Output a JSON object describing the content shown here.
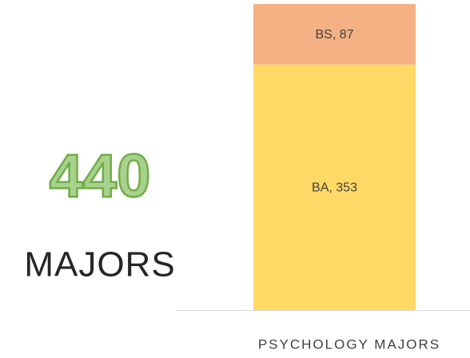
{
  "chart_data": {
    "type": "stacked-bar",
    "categories": [
      "PSYCHOLOGY MAJORS"
    ],
    "series": [
      {
        "name": "BA",
        "color": "#ffd966",
        "values": [
          353
        ],
        "value_labels": [
          "BA, 353"
        ]
      },
      {
        "name": "BS",
        "color": "#f4b183",
        "values": [
          87
        ],
        "value_labels": [
          "BS, 87"
        ]
      }
    ],
    "ylim": [
      0,
      440
    ],
    "annotations": [
      "440",
      "MAJORS"
    ]
  }
}
